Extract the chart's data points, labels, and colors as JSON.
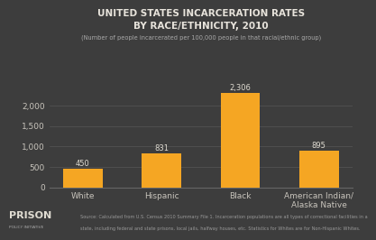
{
  "categories": [
    "White",
    "Hispanic",
    "Black",
    "American Indian/\nAlaska Native"
  ],
  "values": [
    450,
    831,
    2306,
    895
  ],
  "bar_labels": [
    "450",
    "831",
    "2,306",
    "895"
  ],
  "bar_color": "#F5A623",
  "background_color": "#3d3d3d",
  "text_color": "#e0dcd2",
  "title_line1": "UNITED STATES INCARCERATION RATES",
  "title_line2": "BY RACE/ETHNICITY, 2010",
  "subtitle": "(Number of people incarcerated per 100,000 people in that racial/ethnic group)",
  "ylim": [
    0,
    2600
  ],
  "yticks": [
    0,
    500,
    1000,
    1500,
    2000
  ],
  "ytick_labels": [
    "0",
    "500",
    "1,000",
    "1,500",
    "2,000"
  ],
  "source_line1": "Source: Calculated from U.S. Census 2010 Summary File 1. Incarceration populations are all types of correctional facilities in a",
  "source_line2": "state, including federal and state prisons, local jails, halfway houses, etc. Statistics for Whites are for Non-Hispanic Whites.",
  "logo_text1": "PRISON",
  "logo_text2": "POLICY INITIATIVE",
  "grid_color": "#565656",
  "spine_color": "#666666",
  "axis_label_color": "#c8c4bc",
  "title_color": "#e8e4dc",
  "subtitle_color": "#aaaaaa",
  "bar_label_color": "#e0dcd2",
  "source_color": "#999999",
  "logo_color1": "#e0dcd2",
  "logo_color2": "#aaaaaa"
}
